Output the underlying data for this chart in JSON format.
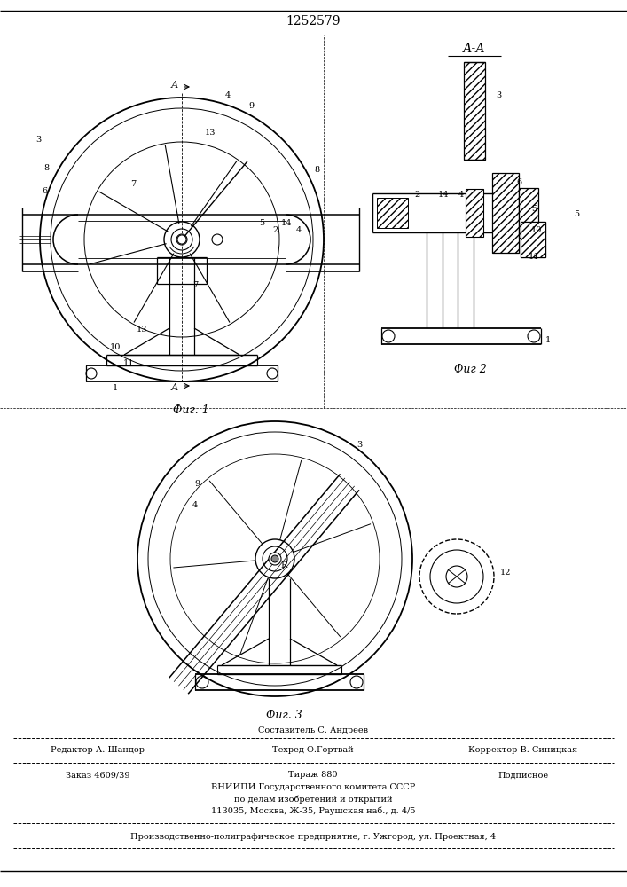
{
  "patent_number": "1252579",
  "bg_color": "#ffffff",
  "line_color": "#000000",
  "fig_width": 7.07,
  "fig_height": 10.0,
  "dpi": 100,
  "fig1_caption": "Фиг. 1",
  "fig2_caption": "Фиг 2",
  "fig3_caption": "Фиг. 3"
}
